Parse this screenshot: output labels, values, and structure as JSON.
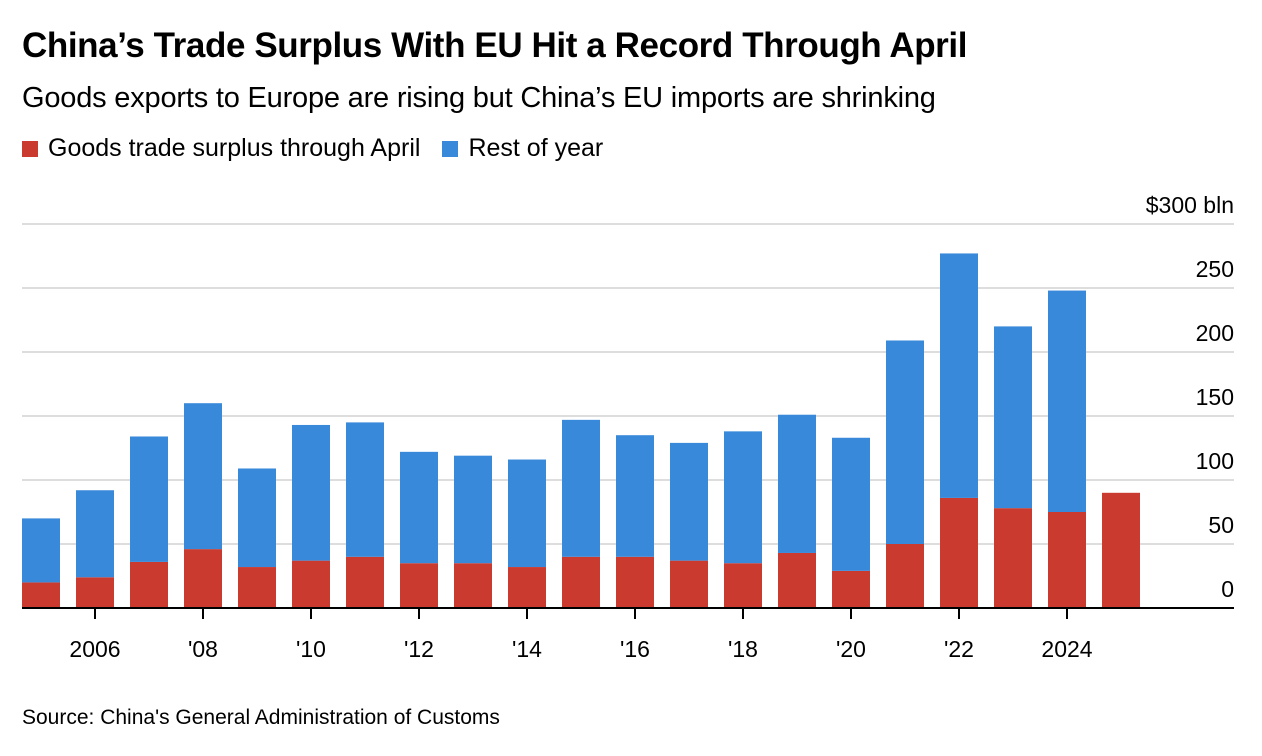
{
  "chart_data": {
    "type": "bar",
    "stacked": true,
    "title": "China’s Trade Surplus With EU Hit a Record Through April",
    "subtitle": "Goods exports to Europe are rising but China’s EU imports are shrinking",
    "source": "Source: China's General Administration of Customs",
    "xlabel": "",
    "ylabel": "",
    "y_unit_label": "$300 bln",
    "ylim": [
      0,
      300
    ],
    "yticks": [
      0,
      50,
      100,
      150,
      200,
      250,
      300
    ],
    "ytick_labels": [
      "0",
      "50",
      "100",
      "150",
      "200",
      "250",
      "$300 bln"
    ],
    "grid": true,
    "legend_position": "top-left",
    "categories": [
      "2005",
      "2006",
      "2007",
      "2008",
      "2009",
      "2010",
      "2011",
      "2012",
      "2013",
      "2014",
      "2015",
      "2016",
      "2017",
      "2018",
      "2019",
      "2020",
      "2021",
      "2022",
      "2023",
      "2024",
      "2025"
    ],
    "xtick_labels": [
      {
        "category": "2006",
        "label": "2006"
      },
      {
        "category": "2008",
        "label": "'08"
      },
      {
        "category": "2010",
        "label": "'10"
      },
      {
        "category": "2012",
        "label": "'12"
      },
      {
        "category": "2014",
        "label": "'14"
      },
      {
        "category": "2016",
        "label": "'16"
      },
      {
        "category": "2018",
        "label": "'18"
      },
      {
        "category": "2020",
        "label": "'20"
      },
      {
        "category": "2022",
        "label": "'22"
      },
      {
        "category": "2024",
        "label": "2024"
      }
    ],
    "series": [
      {
        "name": "Goods trade surplus through April",
        "color": "#cb3a2e",
        "values": [
          20,
          24,
          36,
          46,
          32,
          37,
          40,
          35,
          35,
          32,
          40,
          40,
          37,
          35,
          43,
          29,
          50,
          86,
          78,
          75,
          90
        ]
      },
      {
        "name": "Rest of year",
        "color": "#3889d9",
        "values": [
          50,
          68,
          98,
          114,
          77,
          106,
          105,
          87,
          84,
          84,
          107,
          95,
          92,
          103,
          108,
          104,
          159,
          191,
          142,
          173,
          null
        ]
      }
    ]
  }
}
